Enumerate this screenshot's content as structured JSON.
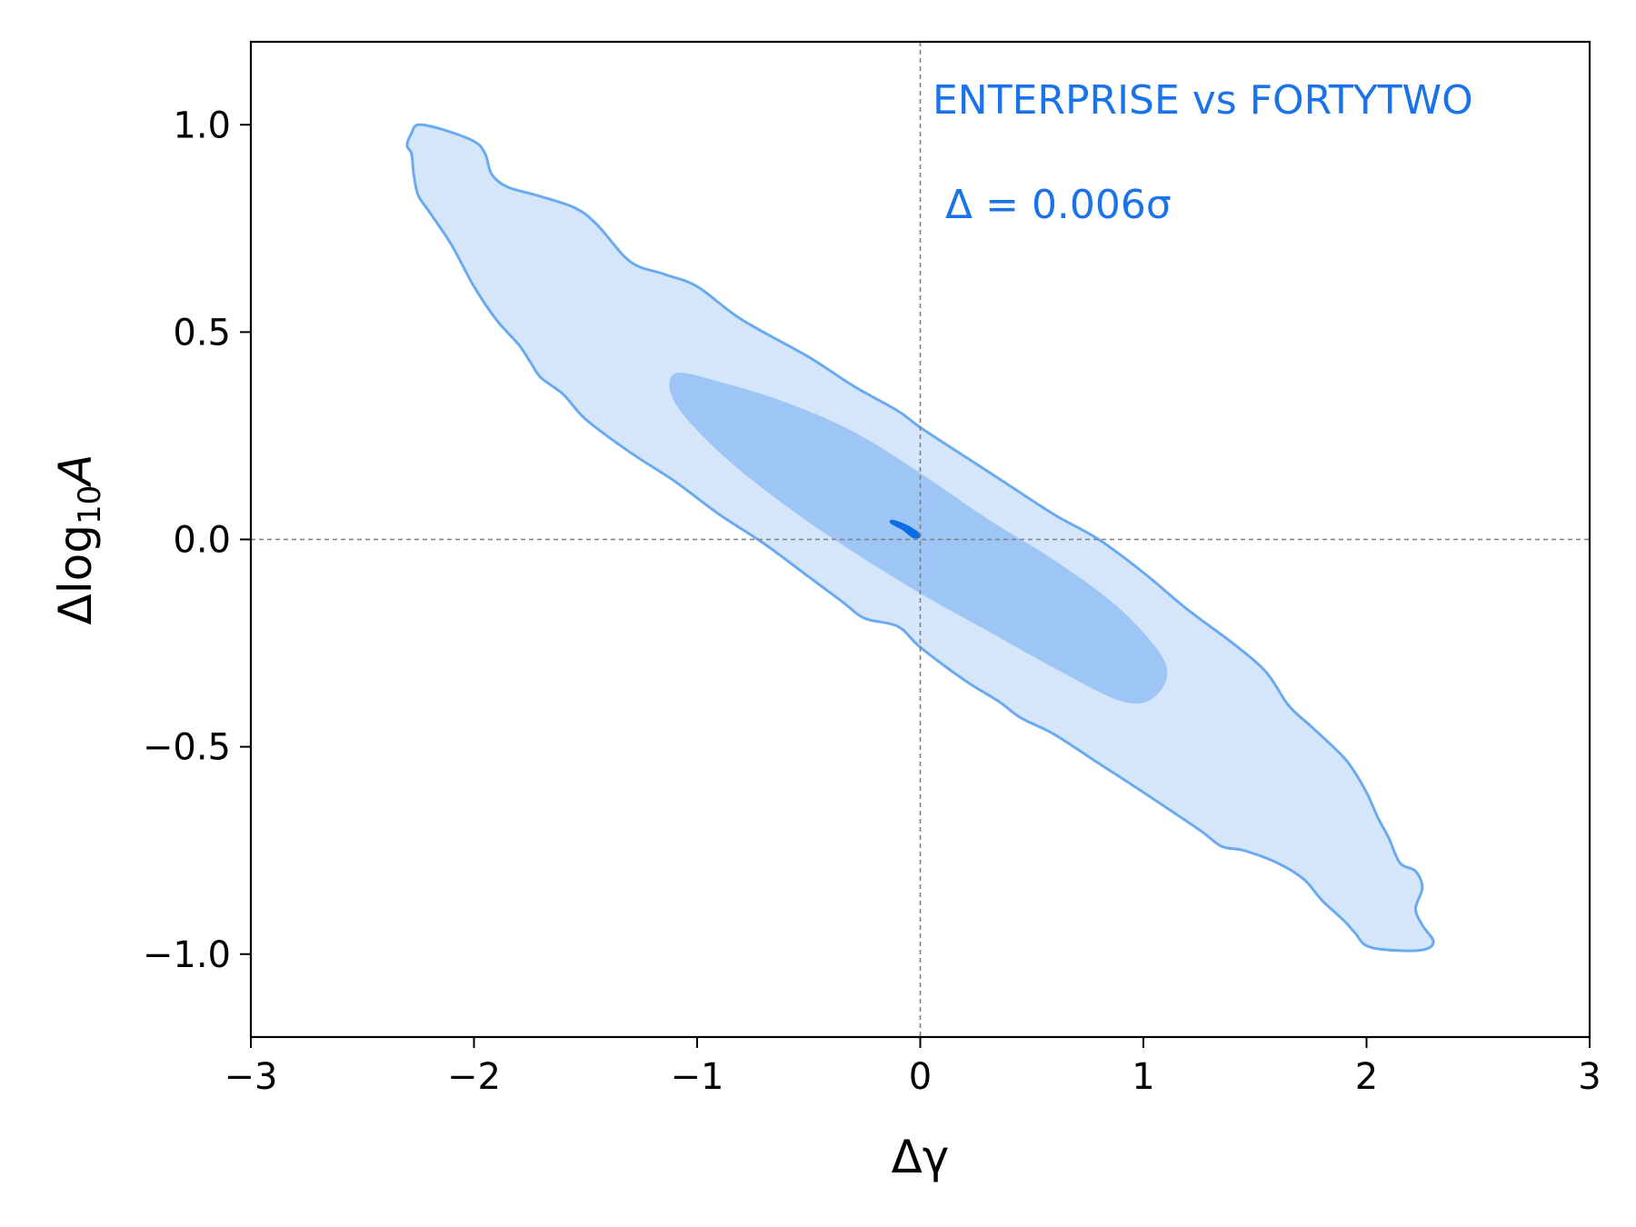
{
  "chart_data": {
    "type": "contour",
    "xlabel": "Δγ",
    "ylabel": "Δlog₁₀A",
    "ylabel_main": "Δlog",
    "ylabel_sub": "10",
    "ylabel_tail": "A",
    "xlim": [
      -3,
      3
    ],
    "ylim": [
      -1.2,
      1.2
    ],
    "xticks": [
      -3,
      -2,
      -1,
      0,
      1,
      2,
      3
    ],
    "xtick_labels": [
      "−3",
      "−2",
      "−1",
      "0",
      "1",
      "2",
      "3"
    ],
    "yticks": [
      -1.0,
      -0.5,
      0.0,
      0.5,
      1.0
    ],
    "ytick_labels": [
      "−1.0",
      "−0.5",
      "0.0",
      "0.5",
      "1.0"
    ],
    "reference_lines": {
      "x": 0,
      "y": 0,
      "style": "dashed",
      "color": "#808080"
    },
    "annotations": {
      "comparison": "ENTERPRISE vs FORTYTWO",
      "offset": "Δ = 0.006σ"
    },
    "colors": {
      "outer_fill": "#d5e6fb",
      "outer_edge": "#6aaaf0",
      "inner_fill": "#9dc6f6",
      "center": "#0a6de6",
      "annotation": "#1a73e8"
    },
    "contours": [
      {
        "level": "outer",
        "points": [
          [
            -2.25,
            1.0
          ],
          [
            -2.15,
            0.99
          ],
          [
            -2.0,
            0.96
          ],
          [
            -1.95,
            0.93
          ],
          [
            -1.92,
            0.88
          ],
          [
            -1.85,
            0.85
          ],
          [
            -1.72,
            0.83
          ],
          [
            -1.55,
            0.8
          ],
          [
            -1.45,
            0.76
          ],
          [
            -1.3,
            0.67
          ],
          [
            -1.15,
            0.64
          ],
          [
            -1.0,
            0.61
          ],
          [
            -0.8,
            0.53
          ],
          [
            -0.5,
            0.44
          ],
          [
            -0.3,
            0.37
          ],
          [
            -0.1,
            0.31
          ],
          [
            0.0,
            0.27
          ],
          [
            0.2,
            0.2
          ],
          [
            0.4,
            0.13
          ],
          [
            0.6,
            0.06
          ],
          [
            0.8,
            0.0
          ],
          [
            1.0,
            -0.08
          ],
          [
            1.2,
            -0.17
          ],
          [
            1.4,
            -0.25
          ],
          [
            1.55,
            -0.32
          ],
          [
            1.65,
            -0.4
          ],
          [
            1.75,
            -0.45
          ],
          [
            1.85,
            -0.5
          ],
          [
            1.92,
            -0.54
          ],
          [
            2.0,
            -0.61
          ],
          [
            2.05,
            -0.67
          ],
          [
            2.1,
            -0.72
          ],
          [
            2.15,
            -0.78
          ],
          [
            2.22,
            -0.8
          ],
          [
            2.25,
            -0.84
          ],
          [
            2.22,
            -0.89
          ],
          [
            2.25,
            -0.93
          ],
          [
            2.3,
            -0.97
          ],
          [
            2.25,
            -0.99
          ],
          [
            2.1,
            -0.99
          ],
          [
            2.0,
            -0.98
          ],
          [
            1.95,
            -0.95
          ],
          [
            1.9,
            -0.92
          ],
          [
            1.8,
            -0.87
          ],
          [
            1.72,
            -0.82
          ],
          [
            1.6,
            -0.78
          ],
          [
            1.45,
            -0.75
          ],
          [
            1.35,
            -0.74
          ],
          [
            1.25,
            -0.7
          ],
          [
            1.0,
            -0.61
          ],
          [
            0.8,
            -0.54
          ],
          [
            0.6,
            -0.47
          ],
          [
            0.45,
            -0.43
          ],
          [
            0.35,
            -0.39
          ],
          [
            0.2,
            -0.34
          ],
          [
            0.0,
            -0.26
          ],
          [
            -0.1,
            -0.21
          ],
          [
            -0.25,
            -0.19
          ],
          [
            -0.35,
            -0.15
          ],
          [
            -0.5,
            -0.09
          ],
          [
            -0.7,
            -0.01
          ],
          [
            -0.9,
            0.06
          ],
          [
            -1.1,
            0.14
          ],
          [
            -1.3,
            0.21
          ],
          [
            -1.5,
            0.29
          ],
          [
            -1.6,
            0.35
          ],
          [
            -1.7,
            0.39
          ],
          [
            -1.75,
            0.43
          ],
          [
            -1.8,
            0.47
          ],
          [
            -1.9,
            0.53
          ],
          [
            -2.0,
            0.61
          ],
          [
            -2.1,
            0.71
          ],
          [
            -2.2,
            0.79
          ],
          [
            -2.25,
            0.83
          ],
          [
            -2.27,
            0.88
          ],
          [
            -2.28,
            0.93
          ],
          [
            -2.3,
            0.95
          ],
          [
            -2.28,
            0.98
          ]
        ]
      },
      {
        "level": "inner",
        "points": [
          [
            -1.1,
            0.4
          ],
          [
            -0.9,
            0.38
          ],
          [
            -0.6,
            0.33
          ],
          [
            -0.3,
            0.26
          ],
          [
            0.0,
            0.16
          ],
          [
            0.3,
            0.05
          ],
          [
            0.6,
            -0.05
          ],
          [
            0.9,
            -0.17
          ],
          [
            1.1,
            -0.3
          ],
          [
            1.05,
            -0.38
          ],
          [
            0.9,
            -0.39
          ],
          [
            0.6,
            -0.31
          ],
          [
            0.3,
            -0.22
          ],
          [
            0.0,
            -0.13
          ],
          [
            -0.3,
            -0.03
          ],
          [
            -0.6,
            0.08
          ],
          [
            -0.9,
            0.21
          ],
          [
            -1.1,
            0.33
          ]
        ]
      },
      {
        "level": "center",
        "points": [
          [
            -0.12,
            0.045
          ],
          [
            -0.05,
            0.03
          ],
          [
            0.0,
            0.01
          ],
          [
            -0.03,
            0.005
          ],
          [
            -0.08,
            0.025
          ],
          [
            -0.13,
            0.04
          ]
        ]
      }
    ]
  }
}
